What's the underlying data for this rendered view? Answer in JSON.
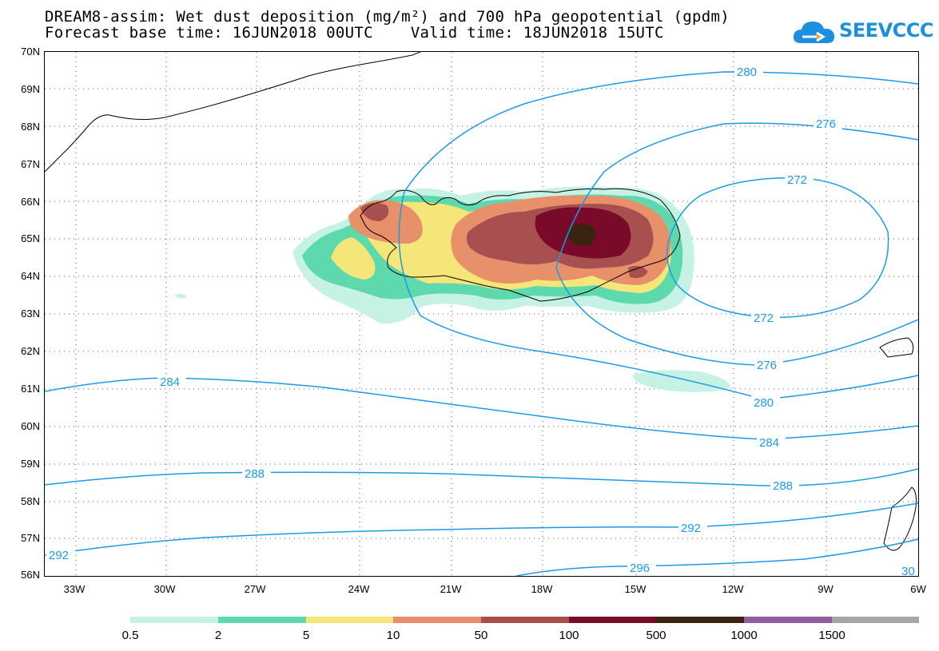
{
  "title": {
    "line1": "DREAM8-assim: Wet dust deposition (mg/m²) and 700 hPa geopotential (gpdm)",
    "line2": "Forecast base time: 16JUN2018 00UTC    Valid time: 18JUN2018 15UTC"
  },
  "logo": {
    "text": "SEEVCCC",
    "icon": "cloud-icon"
  },
  "axes": {
    "lat_labels": [
      "70N",
      "69N",
      "68N",
      "67N",
      "66N",
      "65N",
      "64N",
      "63N",
      "62N",
      "61N",
      "60N",
      "59N",
      "58N",
      "57N",
      "56N"
    ],
    "lon_labels": [
      "33W",
      "30W",
      "27W",
      "24W",
      "21W",
      "18W",
      "15W",
      "12W",
      "9W",
      "6W"
    ]
  },
  "contours": {
    "color": "#1a9be6",
    "labels": [
      "280",
      "276",
      "272",
      "272",
      "276",
      "280",
      "284",
      "284",
      "288",
      "288",
      "292",
      "292",
      "296",
      "30"
    ]
  },
  "colorbar": {
    "labels": [
      "0.5",
      "2",
      "5",
      "10",
      "50",
      "100",
      "500",
      "1000",
      "1500"
    ],
    "colors": [
      "#c6f2e6",
      "#5ed9ad",
      "#f5e67a",
      "#e8906a",
      "#a85050",
      "#7a0a2a",
      "#3a2410",
      "#8e5e9e",
      "#a6a6a6"
    ]
  }
}
